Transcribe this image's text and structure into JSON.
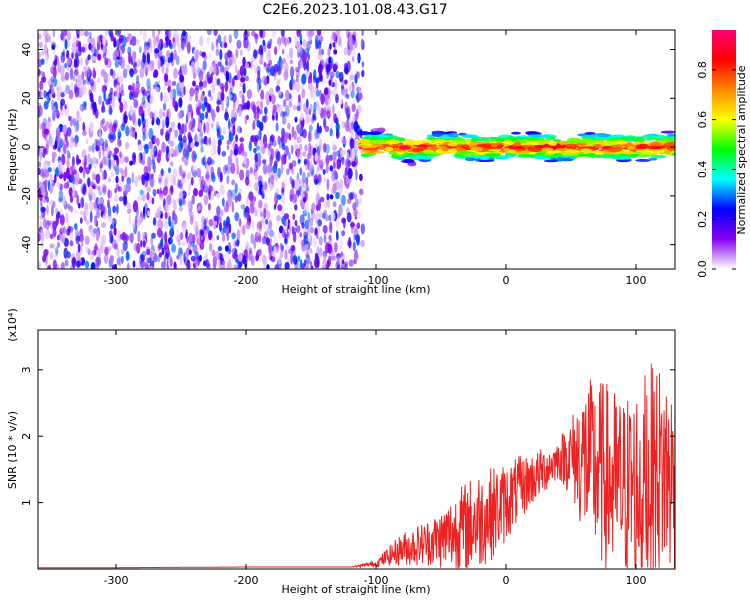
{
  "title": "C2E6.2023.101.08.43.G17",
  "chart_data": [
    {
      "type": "heatmap",
      "xlabel": "Height of straight line (km)",
      "ylabel": "Frequency (Hz)",
      "xlim": [
        -360,
        130
      ],
      "ylim": [
        -50,
        48
      ],
      "xticks": [
        -300,
        -200,
        -100,
        0,
        100
      ],
      "yticks": [
        -40,
        -20,
        0,
        20,
        40
      ],
      "colorbar": {
        "label": "Normalized spectral amplitude",
        "range": [
          0,
          0.96
        ],
        "ticks": [
          "0.0",
          "0.2",
          "0.4",
          "0.6",
          "0.8"
        ],
        "tick_values": [
          0,
          0.2,
          0.4,
          0.6,
          0.8
        ],
        "colors": [
          "#ffffff",
          "#8800ee",
          "#0000ff",
          "#00ffff",
          "#00ff00",
          "#ffff00",
          "#ff8800",
          "#ff0000",
          "#ff0077"
        ]
      },
      "regions": [
        {
          "x": [
            -360,
            -110
          ],
          "y": [
            -50,
            48
          ],
          "amplitude": [
            0.02,
            0.3
          ]
        },
        {
          "x": [
            -110,
            130
          ],
          "y": [
            -5,
            5
          ],
          "amplitude": [
            0.3,
            0.96
          ],
          "center_frequency": 0
        }
      ]
    },
    {
      "type": "line",
      "xlabel": "Height of straight line (km)",
      "ylabel": "SNR (10 * v/v)",
      "scale_label": "(x10⁴)",
      "xlim": [
        -360,
        130
      ],
      "ylim": [
        0,
        3.6
      ],
      "xticks": [
        -300,
        -200,
        -100,
        0,
        100
      ],
      "yticks": [
        1,
        2,
        3
      ],
      "color": "#ee2222",
      "x": [
        -360,
        -300,
        -200,
        -120,
        -100,
        -90,
        -80,
        -70,
        -60,
        -50,
        -40,
        -30,
        -20,
        -10,
        0,
        10,
        20,
        30,
        40,
        50,
        60,
        70,
        80,
        90,
        100,
        110,
        120,
        130
      ],
      "y": [
        0.02,
        0.02,
        0.03,
        0.03,
        0.08,
        0.2,
        0.3,
        0.35,
        0.4,
        0.45,
        0.55,
        0.65,
        0.75,
        0.85,
        1.0,
        1.2,
        1.35,
        1.5,
        1.65,
        1.7,
        1.65,
        1.5,
        1.3,
        1.2,
        1.25,
        1.4,
        1.5,
        1.3
      ],
      "amplitude": [
        0,
        0,
        0,
        0,
        0.05,
        0.15,
        0.25,
        0.3,
        0.35,
        0.45,
        0.6,
        0.7,
        0.75,
        0.7,
        0.6,
        0.5,
        0.4,
        0.35,
        0.3,
        0.6,
        1.2,
        1.4,
        1.5,
        1.4,
        1.6,
        1.7,
        1.6,
        1.5
      ]
    }
  ]
}
